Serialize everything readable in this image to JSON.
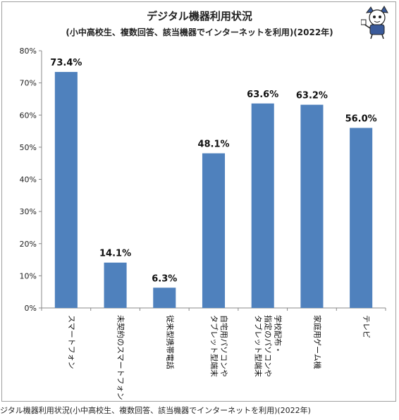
{
  "chart_data": {
    "type": "bar",
    "title": "デジタル機器利用状況",
    "subtitle": "(小中高校生、複数回答、該当機器でインターネットを利用)(2022年)",
    "categories": [
      "スマートフォン",
      "未契約のスマートフォン",
      "従来型携帯電話",
      "自宅用パソコンやタブレット型端末",
      "学校配布・指定のパソコンやタブレット型端末",
      "家庭用ゲーム機",
      "テレビ"
    ],
    "category_lines": [
      [
        "スマートフォン"
      ],
      [
        "未契約のスマートフォン"
      ],
      [
        "従来型携帯電話"
      ],
      [
        "自宅用パソコンや",
        "タブレット型端末"
      ],
      [
        "学校配布・",
        "指定のパソコンや",
        "タブレット型端末"
      ],
      [
        "家庭用ゲーム機"
      ],
      [
        "テレビ"
      ]
    ],
    "values": [
      73.4,
      14.1,
      6.3,
      48.1,
      63.6,
      63.2,
      56.0
    ],
    "value_labels": [
      "73.4%",
      "14.1%",
      "6.3%",
      "48.1%",
      "63.6%",
      "63.2%",
      "56.0%"
    ],
    "ylim": [
      0,
      80
    ],
    "yticks": [
      0,
      10,
      20,
      30,
      40,
      50,
      60,
      70,
      80
    ],
    "ytick_labels": [
      "0%",
      "10%",
      "20%",
      "30%",
      "40%",
      "50%",
      "60%",
      "70%",
      "80%"
    ],
    "xlabel": "",
    "ylabel": "",
    "grid": false,
    "legend": "none",
    "bar_color": "#4f81bd"
  },
  "caption": "ジタル機器利用状況(小中高校生、複数回答、該当機器でインターネットを利用)(2022年)",
  "mascot_icon": "mascot-character-icon"
}
